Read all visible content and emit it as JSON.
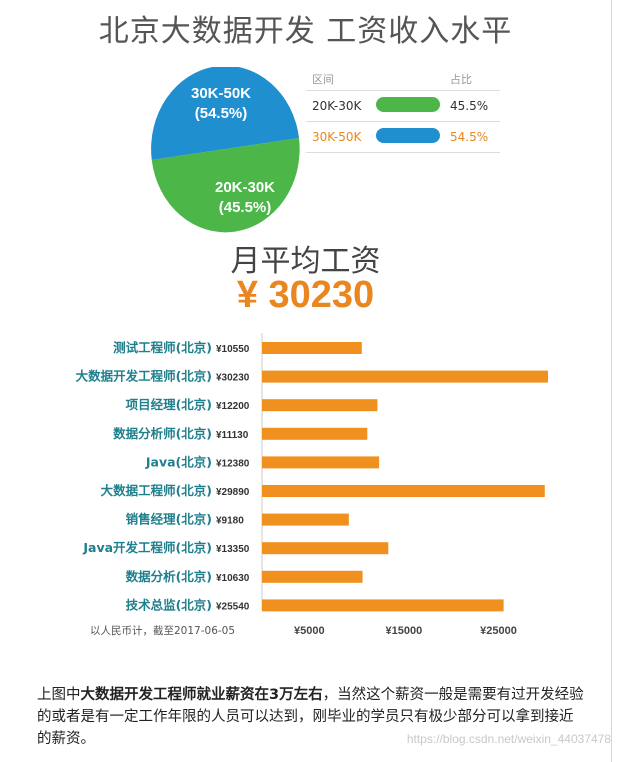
{
  "top_title": "北京大数据开发 工资收入水平",
  "pie": {
    "slices": [
      {
        "label": "30K-50K",
        "pct_label": "(54.5%)",
        "value": 54.5,
        "color": "#1f8fd0"
      },
      {
        "label": "20K-30K",
        "pct_label": "(45.5%)",
        "value": 45.5,
        "color": "#4cb648"
      }
    ]
  },
  "legend": {
    "col_range": "区间",
    "col_share": "占比",
    "rows": [
      {
        "range": "20K-30K",
        "share": "45.5%",
        "color": "#4cb648",
        "text_color": "#333333"
      },
      {
        "range": "30K-50K",
        "share": "54.5%",
        "color": "#1f8fd0",
        "text_color": "#e9861f"
      }
    ]
  },
  "salary_title": "月平均工资",
  "salary_amount": "¥ 30230",
  "chart_data": {
    "type": "bar",
    "orientation": "horizontal",
    "categories": [
      "测试工程师(北京)",
      "大数据开发工程师(北京)",
      "项目经理(北京)",
      "数据分析师(北京)",
      "Java(北京)",
      "大数据工程师(北京)",
      "销售经理(北京)",
      "Java开发工程师(北京)",
      "数据分析(北京)",
      "技术总监(北京)"
    ],
    "value_labels": [
      "¥10550",
      "¥30230",
      "¥12200",
      "¥11130",
      "¥12380",
      "¥29890",
      "¥9180",
      "¥13350",
      "¥10630",
      "¥25540"
    ],
    "values": [
      10550,
      30230,
      12200,
      11130,
      12380,
      29890,
      9180,
      13350,
      10630,
      25540
    ],
    "xlim": [
      0,
      31500
    ],
    "x_ticks": [
      5000,
      15000,
      25000
    ],
    "x_tick_labels": [
      "¥5000",
      "¥15000",
      "¥25000"
    ],
    "axis_note": "以人民币计，截至2017-06-05",
    "bar_color": "#f0901e",
    "label_color": "#1f7f8c"
  },
  "footnote": {
    "part1": "上图中",
    "bold": "大数据开发工程师就业薪资在3万左右",
    "part2": "，当然这个薪资一般是需要有过开发经验的或者是有一定工作年限的人员可以达到，刚毕业的学员只有极少部分可以拿到接近的薪资。"
  },
  "watermark": "https://blog.csdn.net/weixin_44037478"
}
